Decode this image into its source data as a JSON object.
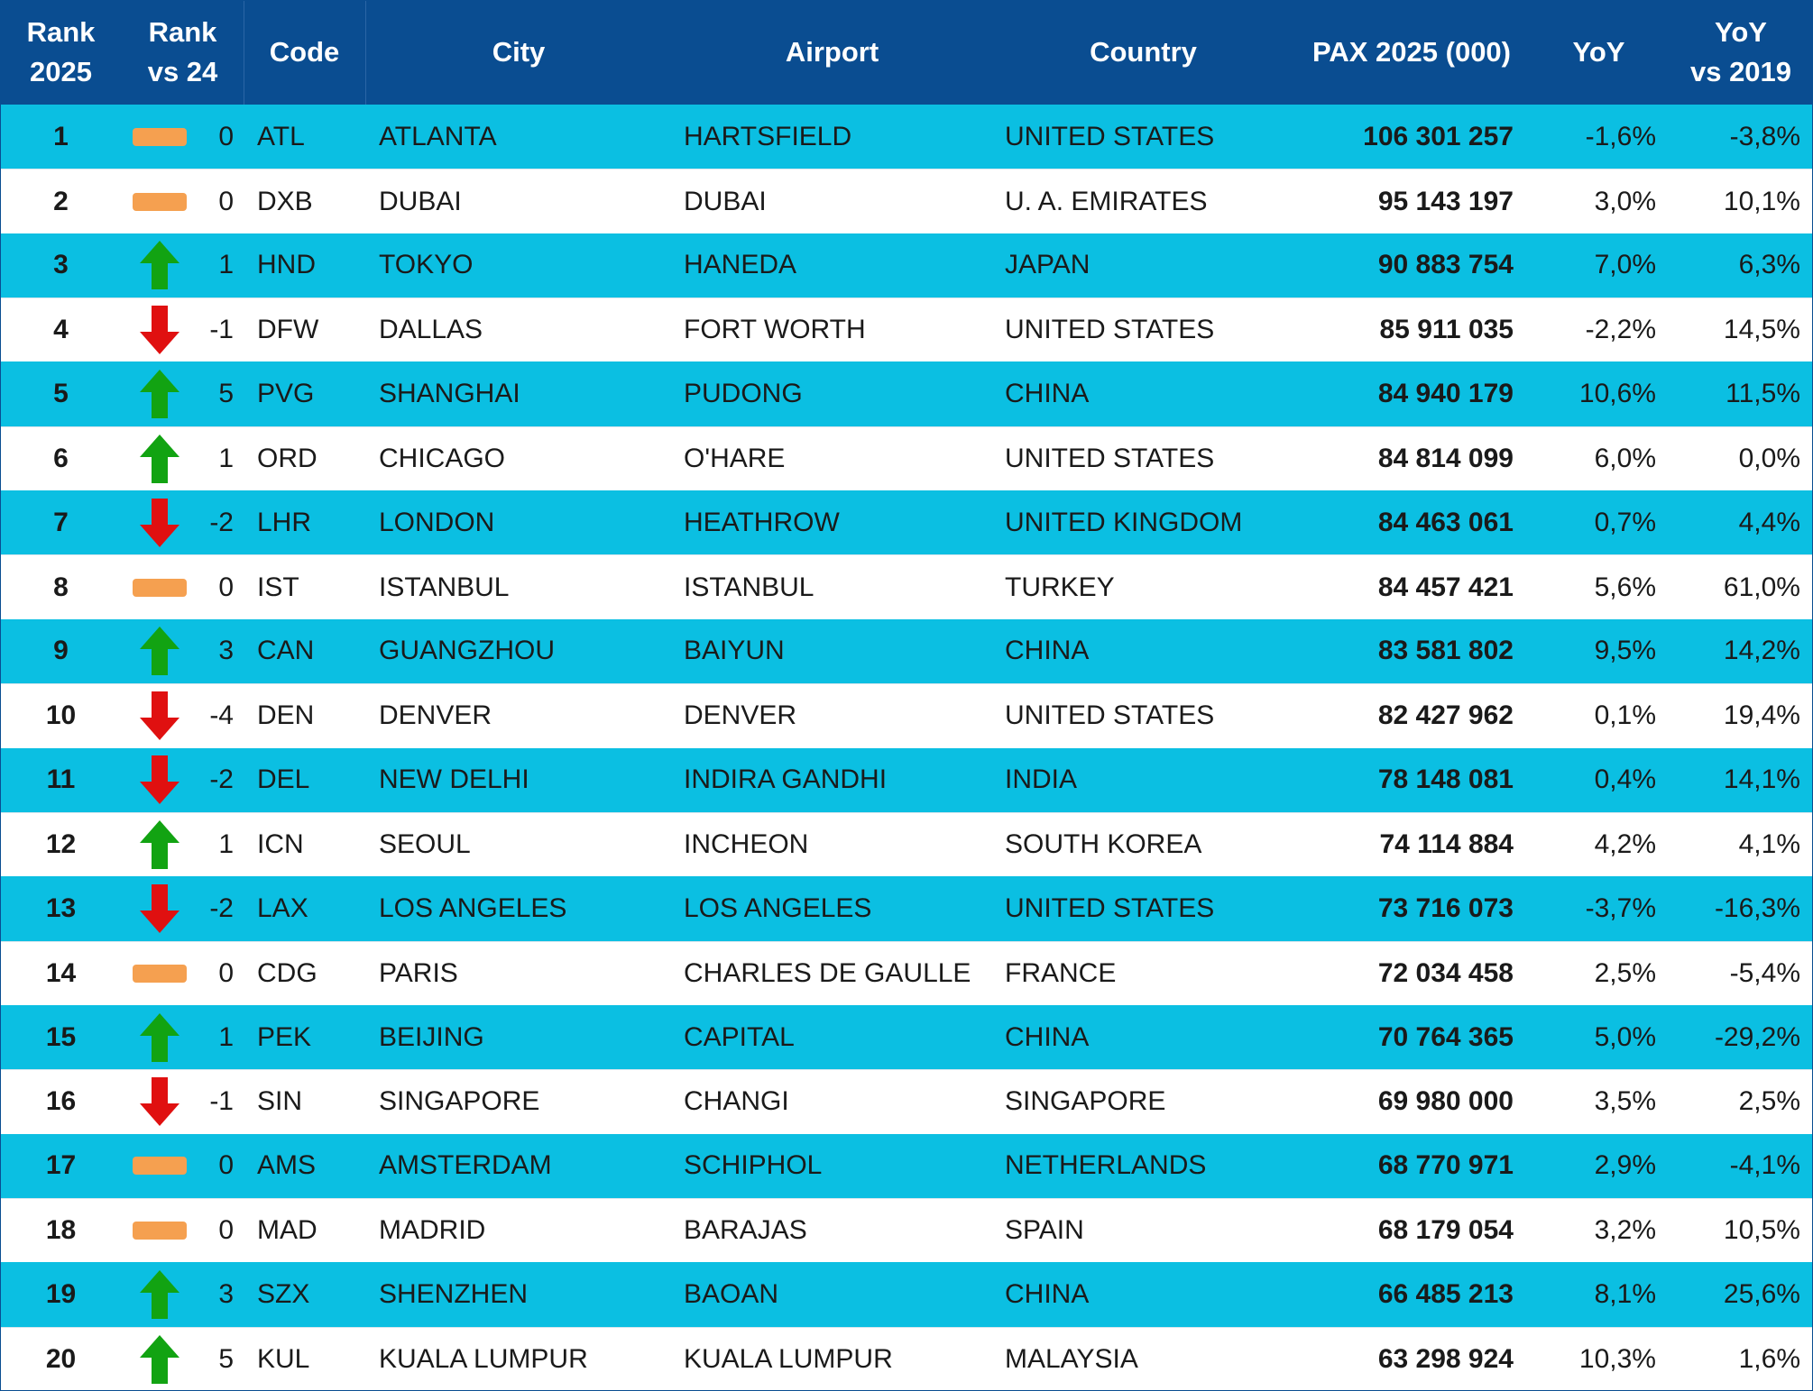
{
  "chart_data": {
    "type": "table",
    "headers": [
      "Rank\n2025",
      "Rank\nvs 24",
      "Code",
      "City",
      "Airport",
      "Country",
      "PAX 2025 (000)",
      "YoY",
      "YoY\nvs 2019"
    ],
    "rows": [
      {
        "rank": "1",
        "trend": "flat",
        "change": "0",
        "code": "ATL",
        "city": "ATLANTA",
        "airport": "HARTSFIELD",
        "country": "UNITED STATES",
        "pax": "106 301 257",
        "yoy": "-1,6%",
        "yoy2019": "-3,8%"
      },
      {
        "rank": "2",
        "trend": "flat",
        "change": "0",
        "code": "DXB",
        "city": "DUBAI",
        "airport": "DUBAI",
        "country": "U. A. EMIRATES",
        "pax": "95 143 197",
        "yoy": "3,0%",
        "yoy2019": "10,1%"
      },
      {
        "rank": "3",
        "trend": "up",
        "change": "1",
        "code": "HND",
        "city": "TOKYO",
        "airport": "HANEDA",
        "country": "JAPAN",
        "pax": "90 883 754",
        "yoy": "7,0%",
        "yoy2019": "6,3%"
      },
      {
        "rank": "4",
        "trend": "down",
        "change": "-1",
        "code": "DFW",
        "city": "DALLAS",
        "airport": "FORT WORTH",
        "country": "UNITED STATES",
        "pax": "85 911 035",
        "yoy": "-2,2%",
        "yoy2019": "14,5%"
      },
      {
        "rank": "5",
        "trend": "up",
        "change": "5",
        "code": "PVG",
        "city": "SHANGHAI",
        "airport": "PUDONG",
        "country": "CHINA",
        "pax": "84 940 179",
        "yoy": "10,6%",
        "yoy2019": "11,5%"
      },
      {
        "rank": "6",
        "trend": "up",
        "change": "1",
        "code": "ORD",
        "city": "CHICAGO",
        "airport": "O'HARE",
        "country": "UNITED STATES",
        "pax": "84 814 099",
        "yoy": "6,0%",
        "yoy2019": "0,0%"
      },
      {
        "rank": "7",
        "trend": "down",
        "change": "-2",
        "code": "LHR",
        "city": "LONDON",
        "airport": "HEATHROW",
        "country": "UNITED KINGDOM",
        "pax": "84 463 061",
        "yoy": "0,7%",
        "yoy2019": "4,4%"
      },
      {
        "rank": "8",
        "trend": "flat",
        "change": "0",
        "code": "IST",
        "city": "ISTANBUL",
        "airport": "ISTANBUL",
        "country": "TURKEY",
        "pax": "84 457 421",
        "yoy": "5,6%",
        "yoy2019": "61,0%"
      },
      {
        "rank": "9",
        "trend": "up",
        "change": "3",
        "code": "CAN",
        "city": "GUANGZHOU",
        "airport": "BAIYUN",
        "country": "CHINA",
        "pax": "83 581 802",
        "yoy": "9,5%",
        "yoy2019": "14,2%"
      },
      {
        "rank": "10",
        "trend": "down",
        "change": "-4",
        "code": "DEN",
        "city": "DENVER",
        "airport": "DENVER",
        "country": "UNITED STATES",
        "pax": "82 427 962",
        "yoy": "0,1%",
        "yoy2019": "19,4%"
      },
      {
        "rank": "11",
        "trend": "down",
        "change": "-2",
        "code": "DEL",
        "city": "NEW DELHI",
        "airport": "INDIRA GANDHI",
        "country": "INDIA",
        "pax": "78 148 081",
        "yoy": "0,4%",
        "yoy2019": "14,1%"
      },
      {
        "rank": "12",
        "trend": "up",
        "change": "1",
        "code": "ICN",
        "city": "SEOUL",
        "airport": "INCHEON",
        "country": "SOUTH KOREA",
        "pax": "74 114 884",
        "yoy": "4,2%",
        "yoy2019": "4,1%"
      },
      {
        "rank": "13",
        "trend": "down",
        "change": "-2",
        "code": "LAX",
        "city": "LOS ANGELES",
        "airport": "LOS ANGELES",
        "country": "UNITED STATES",
        "pax": "73 716 073",
        "yoy": "-3,7%",
        "yoy2019": "-16,3%"
      },
      {
        "rank": "14",
        "trend": "flat",
        "change": "0",
        "code": "CDG",
        "city": "PARIS",
        "airport": "CHARLES DE GAULLE",
        "country": "FRANCE",
        "pax": "72 034 458",
        "yoy": "2,5%",
        "yoy2019": "-5,4%"
      },
      {
        "rank": "15",
        "trend": "up",
        "change": "1",
        "code": "PEK",
        "city": "BEIJING",
        "airport": "CAPITAL",
        "country": "CHINA",
        "pax": "70 764 365",
        "yoy": "5,0%",
        "yoy2019": "-29,2%"
      },
      {
        "rank": "16",
        "trend": "down",
        "change": "-1",
        "code": "SIN",
        "city": "SINGAPORE",
        "airport": "CHANGI",
        "country": "SINGAPORE",
        "pax": "69 980 000",
        "yoy": "3,5%",
        "yoy2019": "2,5%"
      },
      {
        "rank": "17",
        "trend": "flat",
        "change": "0",
        "code": "AMS",
        "city": "AMSTERDAM",
        "airport": "SCHIPHOL",
        "country": "NETHERLANDS",
        "pax": "68 770 971",
        "yoy": "2,9%",
        "yoy2019": "-4,1%"
      },
      {
        "rank": "18",
        "trend": "flat",
        "change": "0",
        "code": "MAD",
        "city": "MADRID",
        "airport": "BARAJAS",
        "country": "SPAIN",
        "pax": "68 179 054",
        "yoy": "3,2%",
        "yoy2019": "10,5%"
      },
      {
        "rank": "19",
        "trend": "up",
        "change": "3",
        "code": "SZX",
        "city": "SHENZHEN",
        "airport": "BAOAN",
        "country": "CHINA",
        "pax": "66 485 213",
        "yoy": "8,1%",
        "yoy2019": "25,6%"
      },
      {
        "rank": "20",
        "trend": "up",
        "change": "5",
        "code": "KUL",
        "city": "KUALA LUMPUR",
        "airport": "KUALA LUMPUR",
        "country": "MALAYSIA",
        "pax": "63 298 924",
        "yoy": "10,3%",
        "yoy2019": "1,6%"
      }
    ]
  },
  "colors": {
    "header_bg": "#0a4d91",
    "row_alt_bg": "#0bbfe2",
    "row_plain_bg": "#ffffff",
    "trend_up": "#12a312",
    "trend_down": "#e01010",
    "trend_flat": "#f5a050"
  },
  "icons": {
    "up": "green-up-arrow-icon",
    "down": "red-down-arrow-icon",
    "flat": "orange-dash-icon"
  }
}
